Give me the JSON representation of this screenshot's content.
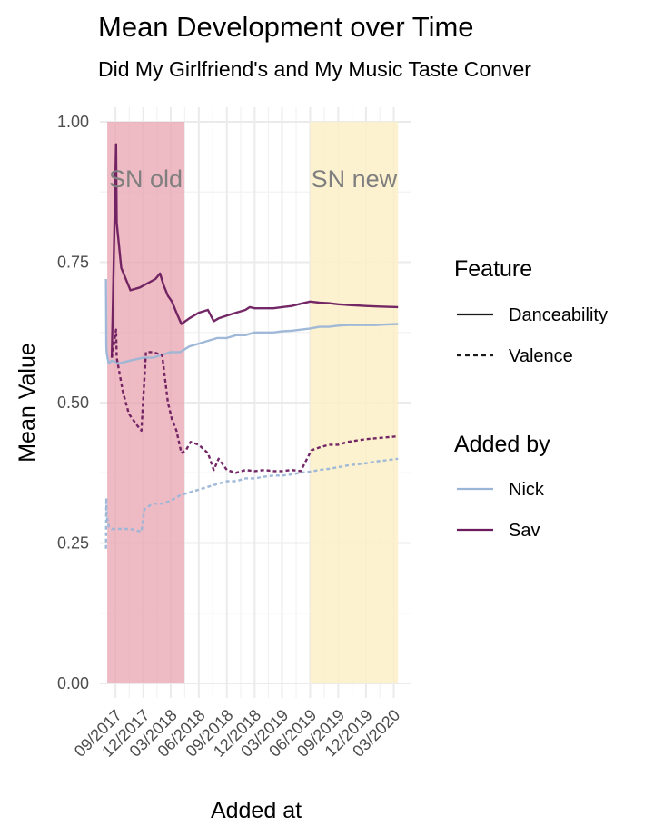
{
  "chart_data": {
    "type": "line",
    "title": "Mean Development over Time",
    "subtitle": "Did My Girlfriend's and My Music Taste Conver",
    "xlabel": "Added at",
    "ylabel": "Mean Value",
    "ylim": [
      0,
      1
    ],
    "xlim": [
      "2017-07-12",
      "2020-04-25"
    ],
    "yticks": [
      "0.00",
      "0.25",
      "0.50",
      "0.75",
      "1.00"
    ],
    "xticks": [
      {
        "date": "2017-09-01",
        "label": "09/2017"
      },
      {
        "date": "2017-12-01",
        "label": "12/2017"
      },
      {
        "date": "2018-03-01",
        "label": "03/2018"
      },
      {
        "date": "2018-06-01",
        "label": "06/2018"
      },
      {
        "date": "2018-09-01",
        "label": "09/2018"
      },
      {
        "date": "2018-12-01",
        "label": "12/2018"
      },
      {
        "date": "2019-03-01",
        "label": "03/2019"
      },
      {
        "date": "2019-06-01",
        "label": "06/2019"
      },
      {
        "date": "2019-09-01",
        "label": "09/2019"
      },
      {
        "date": "2019-12-01",
        "label": "12/2019"
      },
      {
        "date": "2020-03-01",
        "label": "03/2020"
      }
    ],
    "grid": true,
    "legend_placement": "right",
    "regions": [
      {
        "label": "SN old",
        "start": "2017-08-05",
        "end": "2018-04-15",
        "color": "#e8a3b0"
      },
      {
        "label": "SN new",
        "start": "2019-06-01",
        "end": "2020-03-15",
        "color": "#fdf0c8"
      }
    ],
    "legends": [
      {
        "title": "Feature",
        "entries": [
          {
            "label": "Danceability",
            "dash": "solid"
          },
          {
            "label": "Valence",
            "dash": "dashed"
          }
        ]
      },
      {
        "title": "Added by",
        "entries": [
          {
            "label": "Nick",
            "color": "#9bb5d6"
          },
          {
            "label": "Sav",
            "color": "#6b1b5e"
          }
        ]
      }
    ],
    "series": [
      {
        "added_by": "Nick",
        "feature": "Danceability",
        "color": "#9bb5d6",
        "dash": "solid",
        "x": [
          "2017-08-01",
          "2017-08-02",
          "2017-08-03",
          "2017-08-06",
          "2017-08-10",
          "2017-08-20",
          "2017-09-15",
          "2017-10-20",
          "2017-12-01",
          "2018-01-01",
          "2018-02-01",
          "2018-03-01",
          "2018-04-01",
          "2018-05-01",
          "2018-06-01",
          "2018-07-01",
          "2018-08-01",
          "2018-09-01",
          "2018-10-01",
          "2018-11-01",
          "2018-12-01",
          "2019-01-01",
          "2019-02-01",
          "2019-03-01",
          "2019-04-01",
          "2019-05-01",
          "2019-06-01",
          "2019-07-01",
          "2019-08-01",
          "2019-09-01",
          "2019-10-01",
          "2019-11-01",
          "2019-12-01",
          "2020-01-01",
          "2020-02-01",
          "2020-03-15"
        ],
        "y": [
          0.72,
          0.6,
          0.59,
          0.58,
          0.57,
          0.575,
          0.57,
          0.575,
          0.58,
          0.58,
          0.585,
          0.59,
          0.59,
          0.6,
          0.605,
          0.61,
          0.615,
          0.615,
          0.62,
          0.62,
          0.625,
          0.625,
          0.625,
          0.627,
          0.628,
          0.63,
          0.632,
          0.635,
          0.635,
          0.637,
          0.638,
          0.638,
          0.638,
          0.638,
          0.639,
          0.64
        ]
      },
      {
        "added_by": "Sav",
        "feature": "Danceability",
        "color": "#6b1b5e",
        "dash": "solid",
        "x": [
          "2017-08-20",
          "2017-09-03",
          "2017-09-05",
          "2017-09-20",
          "2017-10-20",
          "2017-11-20",
          "2018-01-10",
          "2018-01-25",
          "2018-02-05",
          "2018-02-20",
          "2018-03-05",
          "2018-03-20",
          "2018-04-05",
          "2018-05-01",
          "2018-06-01",
          "2018-07-01",
          "2018-07-20",
          "2018-08-05",
          "2018-09-01",
          "2018-10-01",
          "2018-11-01",
          "2018-11-15",
          "2018-12-01",
          "2019-01-01",
          "2019-02-01",
          "2019-03-01",
          "2019-04-01",
          "2019-05-01",
          "2019-06-01",
          "2019-07-01",
          "2019-08-01",
          "2019-09-01",
          "2019-10-01",
          "2019-12-01",
          "2020-01-15",
          "2020-03-15"
        ],
        "y": [
          0.58,
          0.96,
          0.82,
          0.74,
          0.7,
          0.705,
          0.72,
          0.73,
          0.71,
          0.69,
          0.68,
          0.66,
          0.64,
          0.65,
          0.66,
          0.665,
          0.645,
          0.65,
          0.655,
          0.66,
          0.665,
          0.67,
          0.668,
          0.668,
          0.668,
          0.67,
          0.672,
          0.676,
          0.68,
          0.678,
          0.677,
          0.675,
          0.674,
          0.672,
          0.671,
          0.67
        ]
      },
      {
        "added_by": "Nick",
        "feature": "Valence",
        "color": "#9bb5d6",
        "dash": "dashed",
        "x": [
          "2017-08-01",
          "2017-08-02",
          "2017-08-03",
          "2017-08-06",
          "2017-08-10",
          "2017-08-20",
          "2017-09-15",
          "2017-10-20",
          "2017-11-25",
          "2017-12-05",
          "2018-01-01",
          "2018-02-01",
          "2018-03-01",
          "2018-04-01",
          "2018-05-01",
          "2018-06-01",
          "2018-07-01",
          "2018-08-01",
          "2018-09-01",
          "2018-10-01",
          "2018-11-01",
          "2018-12-01",
          "2019-01-01",
          "2019-02-01",
          "2019-03-01",
          "2019-04-01",
          "2019-05-01",
          "2019-06-01",
          "2019-07-01",
          "2019-08-01",
          "2019-09-01",
          "2019-10-01",
          "2019-11-01",
          "2019-12-01",
          "2020-01-01",
          "2020-03-15"
        ],
        "y": [
          0.24,
          0.33,
          0.3,
          0.29,
          0.28,
          0.275,
          0.275,
          0.275,
          0.27,
          0.31,
          0.32,
          0.32,
          0.325,
          0.335,
          0.34,
          0.345,
          0.35,
          0.355,
          0.36,
          0.36,
          0.365,
          0.365,
          0.368,
          0.37,
          0.37,
          0.372,
          0.375,
          0.377,
          0.38,
          0.382,
          0.385,
          0.388,
          0.39,
          0.392,
          0.395,
          0.4
        ]
      },
      {
        "added_by": "Sav",
        "feature": "Valence",
        "color": "#6b1b5e",
        "dash": "dashed",
        "x": [
          "2017-08-20",
          "2017-09-03",
          "2017-09-05",
          "2017-09-25",
          "2017-10-15",
          "2017-11-10",
          "2017-11-25",
          "2017-12-10",
          "2018-01-01",
          "2018-02-01",
          "2018-02-20",
          "2018-03-05",
          "2018-03-20",
          "2018-04-05",
          "2018-04-20",
          "2018-05-05",
          "2018-06-01",
          "2018-07-01",
          "2018-07-20",
          "2018-08-05",
          "2018-09-01",
          "2018-10-01",
          "2018-11-01",
          "2018-12-01",
          "2019-01-01",
          "2019-02-01",
          "2019-03-01",
          "2019-04-01",
          "2019-05-01",
          "2019-06-05",
          "2019-07-01",
          "2019-08-01",
          "2019-09-01",
          "2019-10-01",
          "2019-12-01",
          "2020-03-15"
        ],
        "y": [
          0.58,
          0.63,
          0.58,
          0.52,
          0.48,
          0.46,
          0.45,
          0.59,
          0.59,
          0.585,
          0.5,
          0.47,
          0.45,
          0.41,
          0.415,
          0.43,
          0.425,
          0.41,
          0.38,
          0.4,
          0.38,
          0.375,
          0.38,
          0.378,
          0.38,
          0.378,
          0.378,
          0.38,
          0.378,
          0.415,
          0.42,
          0.425,
          0.425,
          0.43,
          0.435,
          0.44
        ]
      }
    ]
  }
}
